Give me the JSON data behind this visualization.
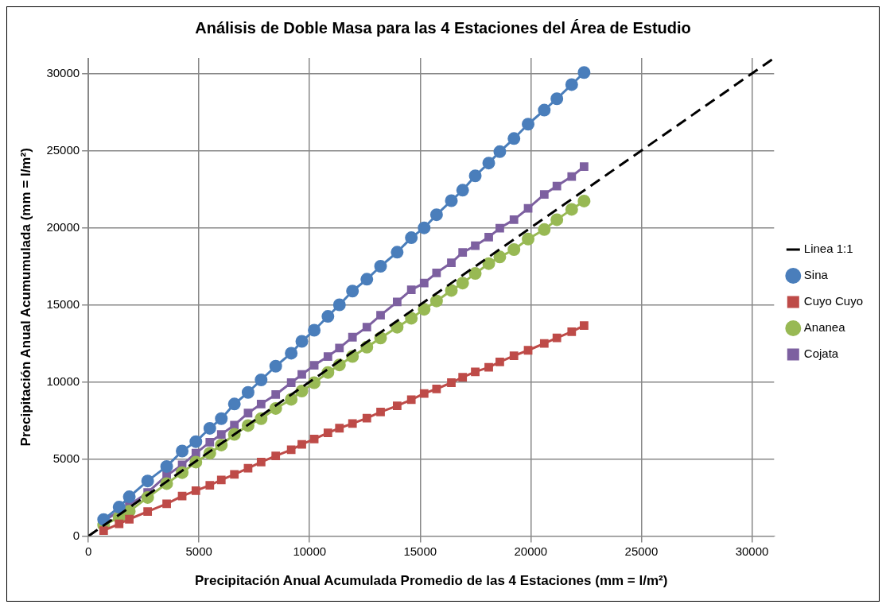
{
  "chart_data": {
    "type": "line",
    "title": "Análisis de Doble Masa para las 4 Estaciones del Área de Estudio",
    "xlabel": "Precipitación Anual Acumulada Promedio de las 4 Estaciones (mm = l/m²)",
    "ylabel": "Precipitación Anual Acumumulada (mm = l/m²)",
    "x": [
      690,
      1390,
      1850,
      2680,
      3540,
      4240,
      4860,
      5490,
      6010,
      6600,
      7220,
      7810,
      8470,
      9170,
      9650,
      10210,
      10830,
      11350,
      11940,
      12590,
      13210,
      13960,
      14600,
      15180,
      15740,
      16410,
      16920,
      17490,
      18100,
      18600,
      19240,
      19880,
      20610,
      21180,
      21850,
      22410
    ],
    "xlim": [
      0,
      31000
    ],
    "ylim": [
      0,
      31000
    ],
    "xticks": [
      0,
      5000,
      10000,
      15000,
      20000,
      25000,
      30000
    ],
    "yticks": [
      0,
      5000,
      10000,
      15000,
      20000,
      25000,
      30000
    ],
    "grid": true,
    "legend": "right",
    "series": [
      {
        "name": "Linea 1:1",
        "color": "#000000",
        "x": [
          0,
          31000
        ],
        "values": [
          0,
          31000
        ],
        "line_style": "dashed",
        "marker": "none"
      },
      {
        "name": "Sina",
        "color": "#4a7ebb",
        "marker": "circle",
        "values": [
          1080,
          1880,
          2550,
          3580,
          4520,
          5520,
          6130,
          6990,
          7620,
          8570,
          9320,
          10130,
          11020,
          11860,
          12630,
          13350,
          14250,
          15000,
          15890,
          16660,
          17500,
          18410,
          19350,
          19990,
          20840,
          21750,
          22430,
          23360,
          24190,
          24930,
          25780,
          26710,
          27620,
          28360,
          29280,
          30060
        ]
      },
      {
        "name": "Cuyo Cuyo",
        "color": "#be4b48",
        "marker": "square",
        "values": [
          360,
          800,
          1100,
          1600,
          2100,
          2600,
          2950,
          3300,
          3650,
          4000,
          4400,
          4800,
          5200,
          5600,
          5950,
          6300,
          6700,
          7000,
          7300,
          7650,
          8050,
          8450,
          8850,
          9250,
          9550,
          9950,
          10300,
          10650,
          10950,
          11300,
          11700,
          12050,
          12500,
          12850,
          13250,
          13650
        ]
      },
      {
        "name": "Ananea",
        "color": "#98b954",
        "marker": "circle",
        "values": [
          720,
          1220,
          1610,
          2510,
          3410,
          4120,
          4800,
          5380,
          5910,
          6600,
          7170,
          7620,
          8280,
          8870,
          9410,
          9950,
          10610,
          11100,
          11650,
          12250,
          12850,
          13550,
          14130,
          14710,
          15250,
          15930,
          16410,
          17030,
          17670,
          18100,
          18580,
          19260,
          19880,
          20520,
          21190,
          21730
        ]
      },
      {
        "name": "Cojata",
        "color": "#7d60a0",
        "marker": "square",
        "values": [
          990,
          1610,
          2010,
          2830,
          3940,
          4620,
          5380,
          6090,
          6600,
          7200,
          7980,
          8570,
          9180,
          9950,
          10480,
          11080,
          11650,
          12200,
          12900,
          13550,
          14320,
          15190,
          15970,
          16410,
          17070,
          17730,
          18390,
          18830,
          19390,
          19970,
          20520,
          21250,
          22160,
          22700,
          23320,
          23960
        ]
      }
    ]
  }
}
